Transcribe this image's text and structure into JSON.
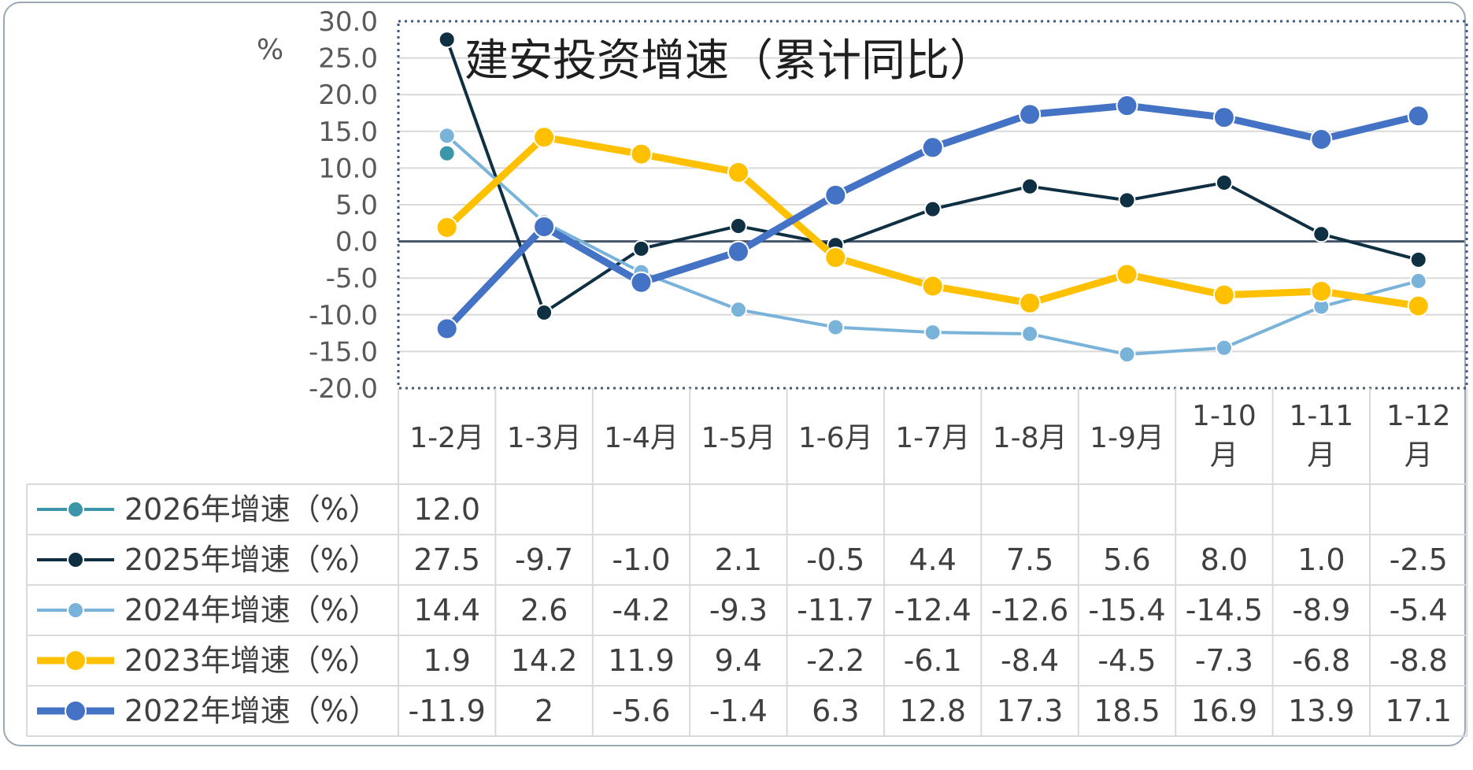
{
  "chart_data": {
    "type": "line",
    "title": "建安投资增速（累计同比）",
    "ylabel": "%",
    "ylim": [
      -20,
      30
    ],
    "yticks": [
      "30.0",
      "25.0",
      "20.0",
      "15.0",
      "10.0",
      "5.0",
      "0.0",
      "-5.0",
      "-10.0",
      "-15.0",
      "-20.0"
    ],
    "categories": [
      [
        "1-2月"
      ],
      [
        "1-3月"
      ],
      [
        "1-4月"
      ],
      [
        "1-5月"
      ],
      [
        "1-6月"
      ],
      [
        "1-7月"
      ],
      [
        "1-8月"
      ],
      [
        "1-9月"
      ],
      [
        "1-10",
        "月"
      ],
      [
        "1-11",
        "月"
      ],
      [
        "1-12",
        "月"
      ]
    ],
    "grid": true,
    "legend": "data-table",
    "series": [
      {
        "name": "2026年增速（%）",
        "color": "#3a96a8",
        "style": "thin",
        "values": [
          12.0,
          null,
          null,
          null,
          null,
          null,
          null,
          null,
          null,
          null,
          null
        ],
        "labels": [
          "12.0",
          "",
          "",
          "",
          "",
          "",
          "",
          "",
          "",
          "",
          ""
        ]
      },
      {
        "name": "2025年增速（%）",
        "color": "#0f2f42",
        "style": "thin",
        "values": [
          27.5,
          -9.7,
          -1.0,
          2.1,
          -0.5,
          4.4,
          7.5,
          5.6,
          8.0,
          1.0,
          -2.5
        ],
        "labels": [
          "27.5",
          "-9.7",
          "-1.0",
          "2.1",
          "-0.5",
          "4.4",
          "7.5",
          "5.6",
          "8.0",
          "1.0",
          "-2.5"
        ]
      },
      {
        "name": "2024年增速（%）",
        "color": "#7ab3d9",
        "style": "thin",
        "values": [
          14.4,
          2.6,
          -4.2,
          -9.3,
          -11.7,
          -12.4,
          -12.6,
          -15.4,
          -14.5,
          -8.9,
          -5.4
        ],
        "labels": [
          "14.4",
          "2.6",
          "-4.2",
          "-9.3",
          "-11.7",
          "-12.4",
          "-12.6",
          "-15.4",
          "-14.5",
          "-8.9",
          "-5.4"
        ]
      },
      {
        "name": "2023年增速（%）",
        "color": "#ffc000",
        "style": "thick",
        "values": [
          1.9,
          14.2,
          11.9,
          9.4,
          -2.2,
          -6.1,
          -8.4,
          -4.5,
          -7.3,
          -6.8,
          -8.8
        ],
        "labels": [
          "1.9",
          "14.2",
          "11.9",
          "9.4",
          "-2.2",
          "-6.1",
          "-8.4",
          "-4.5",
          "-7.3",
          "-6.8",
          "-8.8"
        ]
      },
      {
        "name": "2022年增速（%）",
        "color": "#4472c4",
        "style": "thick",
        "values": [
          -11.9,
          2,
          -5.6,
          -1.4,
          6.3,
          12.8,
          17.3,
          18.5,
          16.9,
          13.9,
          17.1
        ],
        "labels": [
          "-11.9",
          "2",
          "-5.6",
          "-1.4",
          "6.3",
          "12.8",
          "17.3",
          "18.5",
          "16.9",
          "13.9",
          "17.1"
        ]
      }
    ]
  }
}
